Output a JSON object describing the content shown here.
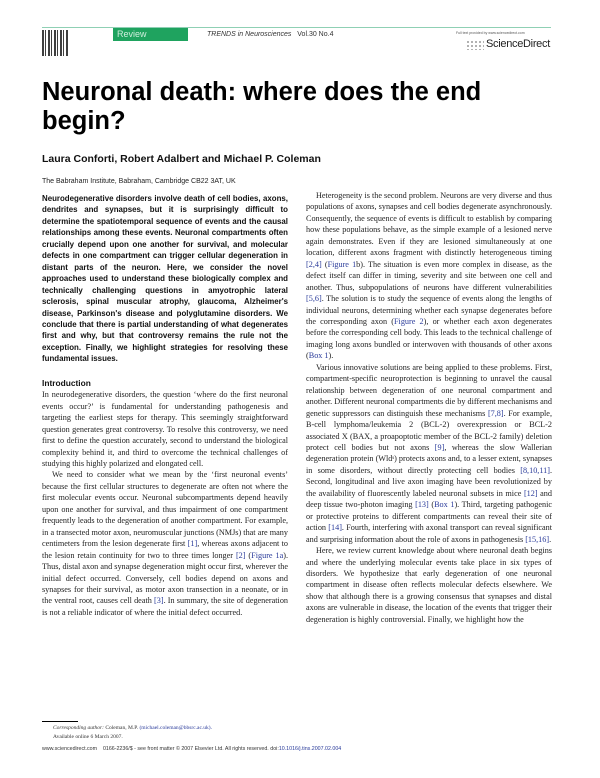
{
  "header": {
    "section_label": "Review",
    "journal_name": "TRENDS in Neurosciences",
    "journal_issue": "Vol.30 No.4",
    "publisher_logo_text": "ScienceDirect",
    "publisher_small_text": "Full text provided by www.sciencedirect.com",
    "accent_color": "#1fa35f"
  },
  "article": {
    "title": "Neuronal death: where does the end begin?",
    "authors": "Laura Conforti, Robert Adalbert and Michael P. Coleman",
    "affiliation": "The Babraham Institute, Babraham, Cambridge CB22 3AT, UK",
    "abstract": "Neurodegenerative disorders involve death of cell bodies, axons, dendrites and synapses, but it is surprisingly difficult to determine the spatiotemporal sequence of events and the causal relationships among these events. Neuronal compartments often crucially depend upon one another for survival, and molecular defects in one compartment can trigger cellular degeneration in distant parts of the neuron. Here, we consider the novel approaches used to understand these biologically complex and technically challenging questions in amyotrophic lateral sclerosis, spinal muscular atrophy, glaucoma, Alzheimer's disease, Parkinson's disease and polyglutamine disorders. We conclude that there is partial understanding of what degenerates first and why, but that controversy remains the rule not the exception. Finally, we highlight strategies for resolving these fundamental issues.",
    "intro_heading": "Introduction",
    "left_paragraphs": [
      [
        {
          "t": "In neurodegenerative disorders, the question ‘where do the first neuronal events occur?’ is fundamental for understanding pathogenesis and targeting the earliest steps for therapy. This seemingly straightforward question generates great controversy. To resolve this controversy, we need first to define the question accurately, second to understand the biological complexity behind it, and third to overcome the technical challenges of studying this highly polarized and elongated cell."
        }
      ],
      [
        {
          "t": "We need to consider what we mean by the ‘first neuronal events’ because the first cellular structures to degenerate are often not where the first molecular events occur. Neuronal subcompartments depend heavily upon one another for survival, and thus impairment of one compartment frequently leads to the degeneration of another compartment. For example, in a transected motor axon, neuromuscular junctions (NMJs) that are many centimeters from the lesion degenerate first "
        },
        {
          "t": "[1]",
          "link": true
        },
        {
          "t": ", whereas axons adjacent to the lesion retain continuity for two to three times longer "
        },
        {
          "t": "[2]",
          "link": true
        },
        {
          "t": " ("
        },
        {
          "t": "Figure 1a",
          "link": true
        },
        {
          "t": "). Thus, distal axon and synapse degeneration might occur first, wherever the initial defect occurred. Conversely, cell bodies depend on axons and synapses for their survival, as motor axon transection in a neonate, or in the ventral root, causes cell death "
        },
        {
          "t": "[3]",
          "link": true
        },
        {
          "t": ". In summary, the site of degeneration is not a reliable indicator of where the initial defect occurred."
        }
      ]
    ],
    "right_paragraphs": [
      [
        {
          "t": "Heterogeneity is the second problem. Neurons are very diverse and thus populations of axons, synapses and cell bodies degenerate asynchronously. Consequently, the sequence of events is difficult to establish by comparing how these populations behave, as the simple example of a lesioned nerve again demonstrates. Even if they are lesioned simultaneously at one location, different axons fragment with distinctly heterogeneous timing "
        },
        {
          "t": "[2,4]",
          "link": true
        },
        {
          "t": " ("
        },
        {
          "t": "Figure 1",
          "link": true
        },
        {
          "t": "b). The situation is even more complex in disease, as the defect itself can differ in timing, severity and site between one cell and another. Thus, subpopulations of neurons have different vulnerabilities "
        },
        {
          "t": "[5,6]",
          "link": true
        },
        {
          "t": ". The solution is to study the sequence of events along the lengths of individual neurons, determining whether each synapse degenerates before the corresponding axon ("
        },
        {
          "t": "Figure 2",
          "link": true
        },
        {
          "t": "), or whether each axon degenerates before the corresponding cell body. This leads to the technical challenge of imaging long axons bundled or interwoven with thousands of other axons ("
        },
        {
          "t": "Box 1",
          "link": true
        },
        {
          "t": ")."
        }
      ],
      [
        {
          "t": "Various innovative solutions are being applied to these problems. First, compartment-specific neuroprotection is beginning to unravel the causal relationship between degeneration of one neuronal compartment and another. Different neuronal compartments die by different mechanisms and genetic suppressors can distinguish these mechanisms "
        },
        {
          "t": "[7,8]",
          "link": true
        },
        {
          "t": ". For example, B-cell lymphoma/leukemia 2 (BCL-2) overexpression or BCL-2 associated X (BAX, a proapoptotic member of the BCL-2 family) deletion protect cell bodies but not axons "
        },
        {
          "t": "[9]",
          "link": true
        },
        {
          "t": ", whereas the slow Wallerian degeneration protein (Wldˢ) protects axons and, to a lesser extent, synapses in some disorders, without directly protecting cell bodies "
        },
        {
          "t": "[8,10,11]",
          "link": true
        },
        {
          "t": ". Second, longitudinal and live axon imaging have been revolutionized by the availability of fluorescently labeled neuronal subsets in mice "
        },
        {
          "t": "[12]",
          "link": true
        },
        {
          "t": " and deep tissue two-photon imaging "
        },
        {
          "t": "[13]",
          "link": true
        },
        {
          "t": " ("
        },
        {
          "t": "Box 1",
          "link": true
        },
        {
          "t": "). Third, targeting pathogenic or protective proteins to different compartments can reveal their site of action "
        },
        {
          "t": "[14]",
          "link": true
        },
        {
          "t": ". Fourth, interfering with axonal transport can reveal significant and surprising information about the role of axons in pathogenesis "
        },
        {
          "t": "[15,16]",
          "link": true
        },
        {
          "t": "."
        }
      ],
      [
        {
          "t": "Here, we review current knowledge about where neuronal death begins and where the underlying molecular events take place in six types of disorders. We hypothesize that early degeneration of one neuronal compartment in disease often reflects molecular defects elsewhere. We show that although there is a growing consensus that synapses and distal axons are vulnerable in disease, the location of the events that trigger their degeneration is highly controversial. Finally, we highlight how the"
        }
      ]
    ]
  },
  "footnote": {
    "corresponding_label": "Corresponding author:",
    "corresponding_name": "Coleman, M.P.",
    "email": "(michael.coleman@bbsrc.ac.uk).",
    "available_online": "Available online 6 March 2007."
  },
  "footer": {
    "website": "www.sciencedirect.com",
    "copyright": "0166-2236/$ - see front matter © 2007 Elsevier Ltd. All rights reserved.",
    "doi_label": "doi:",
    "doi": "10.1016/j.tins.2007.02.004"
  }
}
